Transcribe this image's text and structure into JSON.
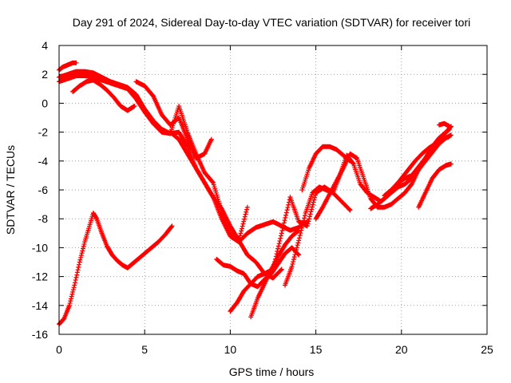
{
  "chart_data": {
    "type": "scatter",
    "title": "Day 291 of 2024, Sidereal Day-to-day VTEC variation (SDTVAR) for receiver tori",
    "xlabel": "GPS time / hours",
    "ylabel": "SDTVAR / TECUs",
    "xlim": [
      0,
      25
    ],
    "ylim": [
      -16,
      4
    ],
    "x_ticks": [
      "0",
      "5",
      "10",
      "15",
      "20",
      "25"
    ],
    "y_ticks": [
      "4",
      "2",
      "0",
      "-2",
      "-4",
      "-6",
      "-8",
      "-10",
      "-12",
      "-14",
      "-16"
    ],
    "grid": true,
    "marker": "+",
    "color": "#ff0000",
    "series": [
      {
        "x": [
          0.0,
          0.3,
          0.6,
          0.9,
          1.2,
          1.5,
          1.8,
          2.0,
          2.2,
          2.5,
          2.8,
          3.1,
          3.4,
          3.7,
          4.0,
          4.3,
          4.6,
          5.0,
          5.4,
          5.8,
          6.2,
          6.6
        ],
        "y": [
          -15.3,
          -14.9,
          -14.0,
          -12.6,
          -11.0,
          -9.6,
          -8.4,
          -7.6,
          -8.0,
          -9.0,
          -9.9,
          -10.5,
          -10.9,
          -11.2,
          -11.4,
          -11.1,
          -10.8,
          -10.4,
          -10.0,
          -9.6,
          -9.1,
          -8.5
        ]
      },
      {
        "x": [
          0.0,
          0.2,
          0.4,
          0.6,
          0.8,
          1.0
        ],
        "y": [
          2.3,
          2.5,
          2.6,
          2.7,
          2.8,
          2.8
        ]
      },
      {
        "x": [
          0.0,
          0.5,
          1.0,
          1.5,
          2.0,
          2.5,
          3.0,
          3.5,
          4.0,
          4.5,
          5.0,
          5.5,
          6.0,
          6.5,
          7.0,
          7.5,
          8.0,
          8.5,
          9.0,
          9.5,
          10.0,
          10.5,
          11.0,
          11.5,
          12.0,
          12.5,
          13.0,
          13.5,
          14.0,
          14.5
        ],
        "y": [
          1.8,
          2.0,
          2.2,
          2.2,
          2.1,
          1.8,
          1.5,
          1.3,
          1.1,
          0.6,
          -0.4,
          -1.2,
          -1.8,
          -2.1,
          -2.0,
          -3.0,
          -4.5,
          -5.5,
          -6.5,
          -8.0,
          -9.2,
          -9.6,
          -9.0,
          -8.6,
          -8.4,
          -8.2,
          -8.5,
          -8.8,
          -8.6,
          -8.2
        ]
      },
      {
        "x": [
          0.0,
          0.5,
          1.0,
          1.5,
          2.0,
          2.5,
          3.0,
          3.5,
          4.0,
          4.5,
          5.0,
          5.5,
          6.0,
          6.5,
          7.0,
          7.5,
          8.0,
          8.5,
          9.0,
          9.5,
          10.0,
          10.5,
          11.0
        ],
        "y": [
          1.5,
          1.7,
          1.9,
          1.9,
          1.8,
          1.6,
          1.4,
          1.2,
          1.0,
          0.3,
          -0.6,
          -1.4,
          -2.0,
          -2.1,
          -0.2,
          -2.0,
          -3.5,
          -4.8,
          -5.5,
          -7.5,
          -9.0,
          -9.5,
          -7.2
        ]
      },
      {
        "x": [
          0.8,
          1.2,
          1.6,
          2.0,
          2.4,
          2.8,
          3.2,
          3.6,
          4.0,
          4.4
        ],
        "y": [
          0.8,
          1.2,
          1.5,
          1.6,
          1.3,
          0.9,
          0.4,
          -0.2,
          -0.5,
          -0.2
        ]
      },
      {
        "x": [
          4.5,
          5.0,
          5.5,
          6.0,
          6.5,
          7.0,
          7.5,
          8.0,
          8.5,
          8.9
        ],
        "y": [
          1.5,
          1.2,
          0.5,
          -0.8,
          -1.5,
          -1.0,
          -2.5,
          -3.8,
          -3.5,
          -2.5
        ]
      },
      {
        "x": [
          6.5,
          7.0,
          7.5,
          8.0,
          8.5,
          9.0,
          9.5,
          10.0,
          10.5,
          11.0,
          11.5,
          12.0,
          12.5,
          13.0
        ],
        "y": [
          -2.0,
          -2.5,
          -3.5,
          -4.5,
          -5.5,
          -6.5,
          -7.3,
          -8.5,
          -9.5,
          -10.5,
          -11.0,
          -11.8,
          -12.1,
          -11.5
        ]
      },
      {
        "x": [
          9.2,
          9.6,
          10.0,
          10.4,
          10.8,
          11.2,
          11.6,
          12.0,
          12.4,
          12.8,
          13.2,
          13.6,
          14.0
        ],
        "y": [
          -10.8,
          -11.2,
          -11.3,
          -11.6,
          -11.8,
          -12.5,
          -12.7,
          -12.2,
          -11.8,
          -11.1,
          -10.4,
          -10.0,
          -10.5
        ]
      },
      {
        "x": [
          10.0,
          10.4,
          10.8,
          11.2,
          11.6,
          12.0,
          12.5,
          13.0,
          13.5,
          14.0,
          14.5,
          15.0,
          15.5,
          16.0,
          16.5,
          17.0
        ],
        "y": [
          -14.4,
          -13.8,
          -13.0,
          -12.5,
          -12.0,
          -11.8,
          -11.5,
          -9.0,
          -6.5,
          -8.2,
          -8.5,
          -6.2,
          -5.8,
          -6.2,
          -6.8,
          -7.4
        ]
      },
      {
        "x": [
          11.2,
          11.6,
          12.0,
          12.4,
          12.8,
          13.2,
          13.6,
          14.0
        ],
        "y": [
          -14.8,
          -13.5,
          -12.5,
          -11.5,
          -10.6,
          -9.8,
          -9.2,
          -8.8
        ]
      },
      {
        "x": [
          13.2,
          13.6,
          14.0,
          14.4,
          14.8,
          15.2,
          15.6,
          16.0,
          16.4,
          16.8,
          17.2,
          17.6,
          18.0,
          18.4,
          18.8,
          19.2,
          19.6,
          20.0,
          20.4,
          20.8,
          21.2,
          21.6,
          22.0,
          22.4,
          22.8
        ],
        "y": [
          -12.6,
          -11.3,
          -9.5,
          -7.6,
          -6.2,
          -5.8,
          -6.0,
          -6.2,
          -5.0,
          -3.6,
          -4.2,
          -5.6,
          -6.2,
          -6.5,
          -6.8,
          -6.4,
          -5.8,
          -5.2,
          -4.6,
          -4.0,
          -3.5,
          -3.1,
          -2.8,
          -2.5,
          -2.3
        ]
      },
      {
        "x": [
          14.2,
          14.6,
          15.0,
          15.4,
          15.8,
          16.2,
          16.6,
          17.0
        ],
        "y": [
          -6.0,
          -4.5,
          -3.5,
          -3.0,
          -3.0,
          -3.2,
          -3.6,
          -4.0
        ]
      },
      {
        "x": [
          15.0,
          15.4,
          15.8,
          16.2,
          16.6,
          17.0,
          17.4,
          17.8,
          18.2,
          18.6,
          19.0,
          19.4,
          19.8,
          20.2,
          20.6,
          21.0,
          21.4,
          21.8,
          22.2,
          22.6,
          22.8
        ],
        "y": [
          -8.0,
          -7.2,
          -6.3,
          -5.4,
          -4.5,
          -3.5,
          -3.8,
          -5.2,
          -6.6,
          -7.2,
          -7.2,
          -7.0,
          -6.6,
          -6.2,
          -5.6,
          -4.6,
          -3.8,
          -3.0,
          -2.4,
          -2.0,
          -1.8
        ]
      },
      {
        "x": [
          18.2,
          18.6,
          19.0,
          19.4,
          19.8,
          20.2,
          20.6,
          21.0,
          21.4,
          21.8,
          22.2,
          22.6,
          22.9
        ],
        "y": [
          -7.3,
          -7.0,
          -6.6,
          -6.2,
          -5.8,
          -5.6,
          -5.2,
          -4.6,
          -4.0,
          -3.4,
          -2.8,
          -2.4,
          -2.2
        ]
      },
      {
        "x": [
          19.0,
          19.4,
          19.8,
          20.2,
          20.6,
          21.0,
          21.4,
          21.8,
          22.2,
          22.6,
          22.9
        ],
        "y": [
          -6.4,
          -6.0,
          -5.5,
          -5.2,
          -5.0,
          -4.4,
          -3.8,
          -3.2,
          -2.6,
          -2.0,
          -1.6
        ]
      },
      {
        "x": [
          21.0,
          21.4,
          21.8,
          22.2,
          22.6,
          22.9
        ],
        "y": [
          -7.2,
          -6.2,
          -5.2,
          -4.6,
          -4.3,
          -4.2
        ]
      },
      {
        "x": [
          22.2,
          22.5,
          22.8
        ],
        "y": [
          -1.5,
          -1.4,
          -1.6
        ]
      }
    ]
  }
}
